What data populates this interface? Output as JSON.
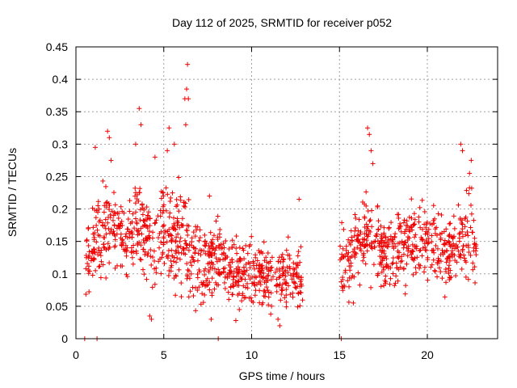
{
  "chart_data": {
    "type": "scatter",
    "title": "Day 112 of 2025, SRMTID for receiver p052",
    "xlabel": "GPS time / hours",
    "ylabel": "SRMTID / TECUs",
    "xlim": [
      0,
      24
    ],
    "ylim": [
      0,
      0.45
    ],
    "xticks": [
      0,
      5,
      10,
      15,
      20
    ],
    "xtick_labels": [
      "0",
      "5",
      "10",
      "15",
      "20"
    ],
    "yticks": [
      0,
      0.05,
      0.1,
      0.15,
      0.2,
      0.25,
      0.3,
      0.35,
      0.4,
      0.45
    ],
    "ytick_labels": [
      "0",
      "0.05",
      "0.1",
      "0.15",
      "0.2",
      "0.25",
      "0.3",
      "0.35",
      "0.4",
      "0.45"
    ],
    "grid": true,
    "legend": "none",
    "marker": "+",
    "series_color": "#ee0000",
    "gaps": [
      [
        12.9,
        15.0
      ]
    ],
    "zero_points_x": [
      0.5,
      1.2,
      8.1,
      15.1
    ],
    "envelope": {
      "x": [
        0.5,
        1.0,
        1.5,
        2.0,
        2.5,
        3.0,
        3.5,
        4.0,
        4.5,
        5.0,
        5.5,
        6.0,
        6.5,
        7.0,
        7.5,
        8.0,
        8.5,
        9.0,
        9.5,
        10.0,
        10.5,
        11.0,
        11.5,
        12.0,
        12.5,
        12.9,
        15.0,
        15.5,
        16.0,
        16.5,
        17.0,
        17.5,
        18.0,
        18.5,
        19.0,
        19.5,
        20.0,
        20.5,
        21.0,
        21.5,
        22.0,
        22.5,
        22.8
      ],
      "center": [
        0.12,
        0.14,
        0.16,
        0.18,
        0.17,
        0.16,
        0.17,
        0.16,
        0.15,
        0.17,
        0.15,
        0.16,
        0.13,
        0.12,
        0.12,
        0.13,
        0.11,
        0.1,
        0.1,
        0.1,
        0.1,
        0.09,
        0.09,
        0.1,
        0.1,
        0.09,
        0.12,
        0.12,
        0.14,
        0.16,
        0.15,
        0.13,
        0.13,
        0.14,
        0.15,
        0.16,
        0.15,
        0.14,
        0.13,
        0.14,
        0.15,
        0.16,
        0.15
      ],
      "spread": [
        0.05,
        0.07,
        0.07,
        0.07,
        0.06,
        0.07,
        0.08,
        0.07,
        0.07,
        0.09,
        0.08,
        0.1,
        0.08,
        0.07,
        0.07,
        0.06,
        0.05,
        0.06,
        0.06,
        0.06,
        0.05,
        0.05,
        0.05,
        0.05,
        0.06,
        0.05,
        0.05,
        0.06,
        0.07,
        0.07,
        0.07,
        0.06,
        0.06,
        0.07,
        0.07,
        0.07,
        0.07,
        0.07,
        0.06,
        0.07,
        0.07,
        0.07,
        0.06
      ]
    },
    "spikes": [
      {
        "x": 1.1,
        "y": 0.295
      },
      {
        "x": 1.8,
        "y": 0.32
      },
      {
        "x": 1.9,
        "y": 0.31
      },
      {
        "x": 2.0,
        "y": 0.275
      },
      {
        "x": 3.4,
        "y": 0.3
      },
      {
        "x": 3.6,
        "y": 0.355
      },
      {
        "x": 3.7,
        "y": 0.33
      },
      {
        "x": 4.5,
        "y": 0.28
      },
      {
        "x": 5.2,
        "y": 0.29
      },
      {
        "x": 5.3,
        "y": 0.325
      },
      {
        "x": 5.6,
        "y": 0.3
      },
      {
        "x": 6.2,
        "y": 0.37
      },
      {
        "x": 6.3,
        "y": 0.385
      },
      {
        "x": 6.35,
        "y": 0.423
      },
      {
        "x": 6.4,
        "y": 0.37
      },
      {
        "x": 6.25,
        "y": 0.33
      },
      {
        "x": 7.6,
        "y": 0.22
      },
      {
        "x": 12.7,
        "y": 0.215
      },
      {
        "x": 16.6,
        "y": 0.325
      },
      {
        "x": 16.7,
        "y": 0.315
      },
      {
        "x": 16.8,
        "y": 0.29
      },
      {
        "x": 16.9,
        "y": 0.27
      },
      {
        "x": 21.9,
        "y": 0.3
      },
      {
        "x": 22.0,
        "y": 0.29
      },
      {
        "x": 22.5,
        "y": 0.275
      },
      {
        "x": 22.4,
        "y": 0.255
      },
      {
        "x": 4.2,
        "y": 0.035
      },
      {
        "x": 4.3,
        "y": 0.03
      },
      {
        "x": 7.7,
        "y": 0.03
      },
      {
        "x": 9.1,
        "y": 0.028
      },
      {
        "x": 11.6,
        "y": 0.02
      },
      {
        "x": 11.5,
        "y": 0.03
      }
    ]
  }
}
